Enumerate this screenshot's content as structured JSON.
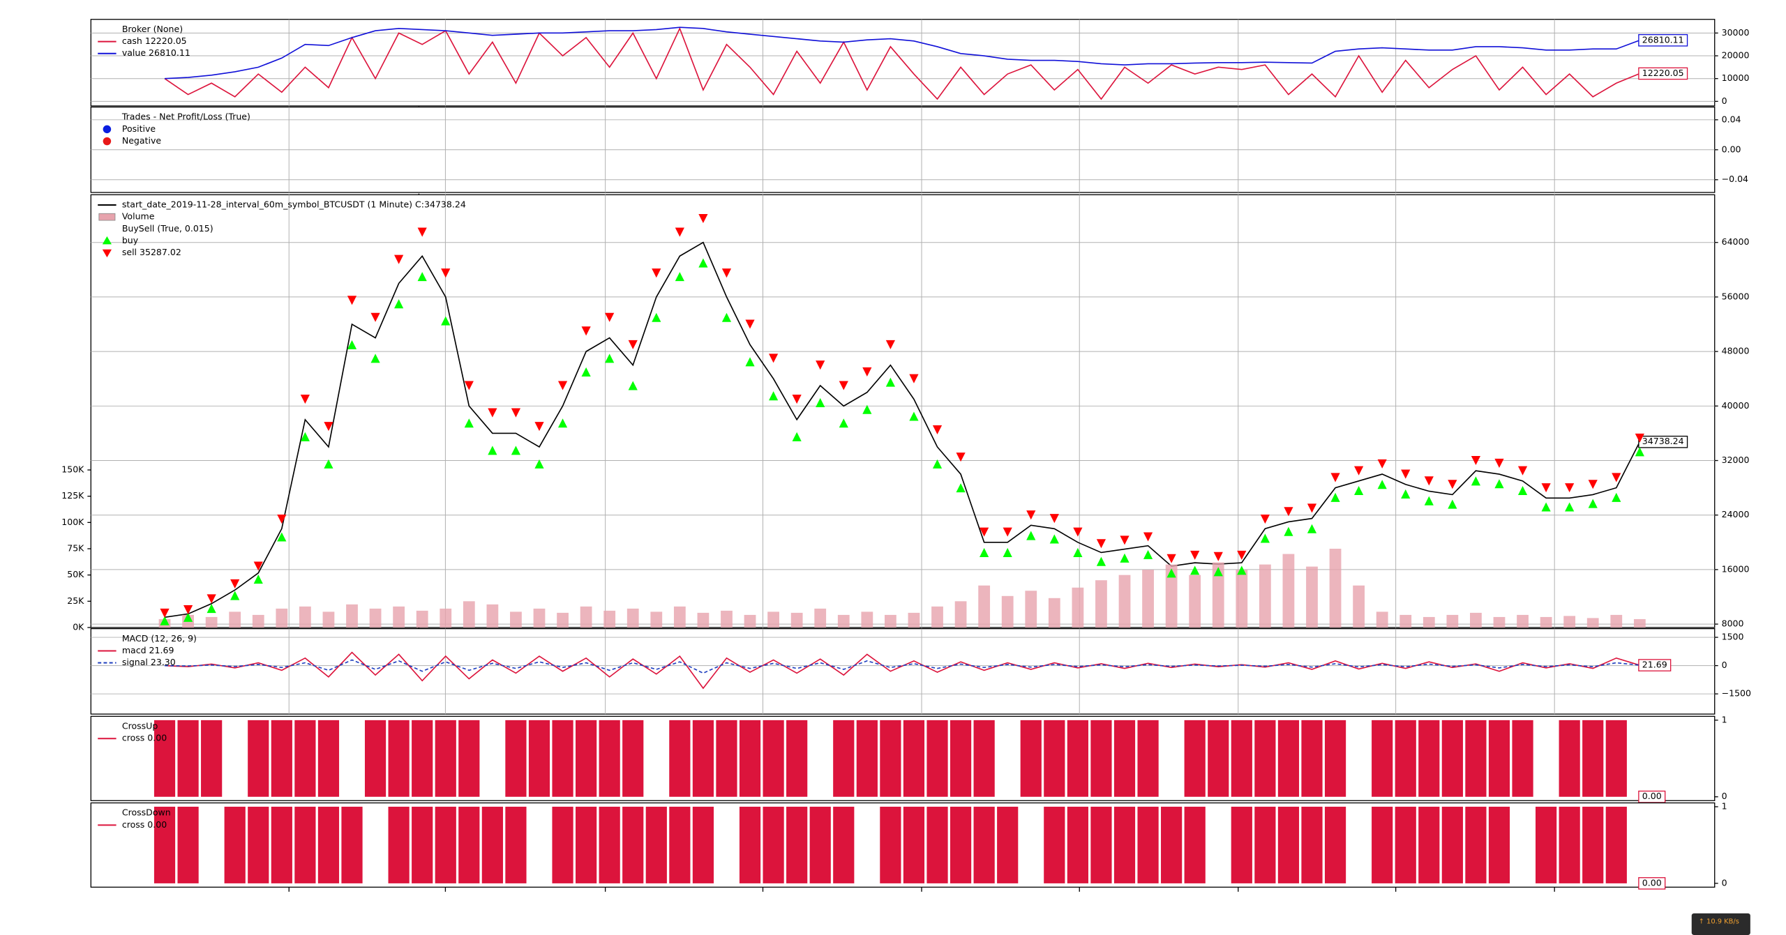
{
  "chart_data": [
    {
      "type": "line",
      "legend_title": "Broker (None)",
      "grid": true,
      "xlim": [
        -3.15,
        66.2
      ],
      "xticks": [
        5.31,
        11.99,
        18.82,
        25.55,
        32.33,
        39.07,
        45.85,
        52.58,
        59.36
      ],
      "ylim": [
        -2000,
        36000
      ],
      "yticks": [
        0,
        10000,
        20000,
        30000
      ],
      "series": [
        {
          "name": "cash 12220.05",
          "color": "#dc143c",
          "style": "line",
          "end_label": "12220.05",
          "values": [
            10000,
            3000,
            8000,
            2000,
            12000,
            4000,
            15000,
            6000,
            28000,
            10000,
            30000,
            25000,
            31000,
            12000,
            26000,
            8000,
            30000,
            20000,
            28000,
            15000,
            30000,
            10000,
            32000,
            5000,
            25000,
            15000,
            3000,
            22000,
            8000,
            26000,
            5000,
            24000,
            12000,
            1000,
            15000,
            3000,
            12000,
            16000,
            5000,
            14000,
            1000,
            15000,
            8000,
            16000,
            12000,
            15000,
            14000,
            16000,
            3000,
            12000,
            2000,
            20000,
            4000,
            18000,
            6000,
            14000,
            20000,
            5000,
            15000,
            3000,
            12000,
            2000,
            8000,
            12220.05
          ]
        },
        {
          "name": "value 26810.11",
          "color": "#1010d8",
          "style": "line",
          "end_label": "26810.11",
          "values": [
            10000,
            10500,
            11500,
            13000,
            15000,
            19000,
            25000,
            24500,
            28000,
            31000,
            32000,
            31500,
            31000,
            30000,
            29000,
            29500,
            30000,
            30000,
            30500,
            31000,
            31000,
            31500,
            32500,
            32000,
            30500,
            29500,
            28500,
            27500,
            26500,
            26000,
            27000,
            27500,
            26500,
            24000,
            21000,
            20000,
            18500,
            18000,
            18000,
            17500,
            16500,
            16000,
            16500,
            16500,
            16800,
            17000,
            17000,
            17200,
            17000,
            16800,
            22000,
            23000,
            23500,
            23000,
            22500,
            22500,
            24000,
            24000,
            23500,
            22500,
            22500,
            23000,
            23000,
            26810.11
          ]
        }
      ]
    },
    {
      "type": "scatter",
      "legend_title": "Trades - Net Profit/Loss (True)",
      "grid": true,
      "xlim": [
        -3.15,
        66.2
      ],
      "xticks": [
        5.31,
        11.99,
        18.82,
        25.55,
        32.33,
        39.07,
        45.85,
        52.58,
        59.36
      ],
      "ylim": [
        -0.057,
        0.057
      ],
      "yticks": [
        {
          "value": -0.04,
          "label": "−0.04"
        },
        {
          "value": 0,
          "label": "0.00"
        },
        {
          "value": 0.04,
          "label": "0.04"
        }
      ],
      "series": [
        {
          "name": "Positive",
          "color": "#0a1ee0",
          "style": "circle",
          "values": []
        },
        {
          "name": "Negative",
          "color": "#e81818",
          "style": "circle",
          "values": []
        }
      ]
    },
    {
      "type": "line",
      "grid": true,
      "group_title": "BuySell (True, 0.015)",
      "group_start": 2,
      "xlim": [
        -3.15,
        66.2
      ],
      "xticks": [
        5.31,
        11.99,
        18.82,
        25.55,
        32.33,
        39.07,
        45.85,
        52.58,
        59.36
      ],
      "ylim": [
        7500,
        71000
      ],
      "yticks": [
        8000,
        16000,
        24000,
        32000,
        40000,
        48000,
        56000,
        64000
      ],
      "y2lim": [
        0,
        412000
      ],
      "y2ticks": [
        {
          "value": 0,
          "label": "0K"
        },
        {
          "value": 25000,
          "label": "25K"
        },
        {
          "value": 50000,
          "label": "50K"
        },
        {
          "value": 75000,
          "label": "75K"
        },
        {
          "value": 100000,
          "label": "100K"
        },
        {
          "value": 125000,
          "label": "125K"
        },
        {
          "value": 150000,
          "label": "150K"
        }
      ],
      "series": [
        {
          "name": "start_date_2019-11-28_interval_60m_symbol_BTCUSDT (1 Minute) C:34738.24",
          "color": "#000000",
          "style": "line",
          "end_label": "34738.24",
          "values": [
            9000,
            9500,
            11000,
            13000,
            15500,
            22000,
            38000,
            34000,
            52000,
            50000,
            58000,
            62000,
            56000,
            40000,
            36000,
            36000,
            34000,
            40000,
            48000,
            50000,
            46000,
            56000,
            62000,
            64000,
            56000,
            49000,
            44000,
            38000,
            43000,
            40000,
            42000,
            46000,
            41000,
            34000,
            30000,
            20000,
            20000,
            22500,
            22000,
            20000,
            18500,
            19000,
            19500,
            16500,
            17000,
            16800,
            17000,
            22000,
            23000,
            23500,
            28000,
            29000,
            30000,
            28500,
            27500,
            27000,
            30500,
            30000,
            29000,
            26500,
            26500,
            27000,
            28000,
            34738.24
          ]
        },
        {
          "name": "Volume",
          "color": "#e7a3ad",
          "style": "bar",
          "axis": "y2",
          "values": [
            8000,
            12000,
            10000,
            15000,
            12000,
            18000,
            20000,
            15000,
            22000,
            18000,
            20000,
            16000,
            18000,
            25000,
            22000,
            15000,
            18000,
            14000,
            20000,
            16000,
            18000,
            15000,
            20000,
            14000,
            16000,
            12000,
            15000,
            14000,
            18000,
            12000,
            15000,
            12000,
            14000,
            20000,
            25000,
            40000,
            30000,
            35000,
            28000,
            38000,
            45000,
            50000,
            55000,
            60000,
            50000,
            62000,
            55000,
            60000,
            70000,
            58000,
            75000,
            40000,
            15000,
            12000,
            10000,
            12000,
            14000,
            10000,
            12000,
            10000,
            11000,
            9000,
            12000,
            8000
          ]
        },
        {
          "name": "buy",
          "color": "#00ff00",
          "style": "triangle-up",
          "values": [
            8500,
            9000,
            10300,
            12200,
            14600,
            20800,
            35500,
            31500,
            49000,
            47000,
            55000,
            59000,
            52500,
            37500,
            33500,
            33500,
            31500,
            37500,
            45000,
            47000,
            43000,
            53000,
            59000,
            61000,
            53000,
            46500,
            41500,
            35500,
            40500,
            37500,
            39500,
            43500,
            38500,
            31500,
            28000,
            18500,
            18500,
            21000,
            20500,
            18500,
            17200,
            17700,
            18200,
            15500,
            15900,
            15700,
            15900,
            20600,
            21600,
            22000,
            26600,
            27600,
            28500,
            27100,
            26100,
            25600,
            29000,
            28600,
            27600,
            25200,
            25200,
            25700,
            26600,
            33300
          ]
        },
        {
          "name": "sell 35287.02",
          "color": "#ff0000",
          "style": "triangle-down",
          "values": [
            9600,
            10100,
            11700,
            13900,
            16500,
            23400,
            41000,
            37000,
            55500,
            53000,
            61500,
            65500,
            59500,
            43000,
            39000,
            39000,
            37000,
            43000,
            51000,
            53000,
            49000,
            59500,
            65500,
            67500,
            59500,
            52000,
            47000,
            41000,
            46000,
            43000,
            45000,
            49000,
            44000,
            36500,
            32500,
            21500,
            21500,
            24000,
            23500,
            21500,
            19800,
            20300,
            20800,
            17600,
            18100,
            17900,
            18100,
            23400,
            24500,
            25000,
            29500,
            30500,
            31500,
            30000,
            29000,
            28500,
            32000,
            31600,
            30500,
            28000,
            28000,
            28500,
            29500,
            35287.02
          ]
        }
      ]
    },
    {
      "type": "line",
      "legend_title": "MACD (12, 26, 9)",
      "grid": true,
      "xlim": [
        -3.15,
        66.2
      ],
      "xticks": [
        5.31,
        11.99,
        18.82,
        25.55,
        32.33,
        39.07,
        45.85,
        52.58,
        59.36
      ],
      "ylim": [
        -2570,
        1960
      ],
      "yticks": [
        {
          "value": -1500,
          "label": "−1500"
        },
        0,
        1500
      ],
      "series": [
        {
          "name": "macd 21.69",
          "color": "#dc143c",
          "style": "line",
          "end_label": "21.69",
          "values": [
            0,
            -60,
            80,
            -120,
            150,
            -250,
            400,
            -600,
            700,
            -500,
            600,
            -800,
            500,
            -700,
            300,
            -400,
            500,
            -300,
            400,
            -600,
            350,
            -450,
            500,
            -1200,
            400,
            -350,
            300,
            -400,
            350,
            -500,
            600,
            -300,
            250,
            -350,
            200,
            -250,
            150,
            -200,
            150,
            -120,
            100,
            -150,
            120,
            -100,
            80,
            -60,
            50,
            -80,
            150,
            -200,
            250,
            -180,
            120,
            -150,
            200,
            -100,
            90,
            -300,
            150,
            -120,
            100,
            -150,
            400,
            21.69
          ]
        },
        {
          "name": "signal 23.30",
          "color": "#1f3fbf",
          "style": "line",
          "dash": true,
          "values": [
            0,
            -20,
            30,
            -50,
            60,
            -100,
            150,
            -250,
            300,
            -200,
            250,
            -300,
            200,
            -250,
            120,
            -150,
            200,
            -100,
            150,
            -250,
            150,
            -200,
            200,
            -400,
            150,
            -150,
            120,
            -150,
            150,
            -200,
            250,
            -100,
            100,
            -150,
            80,
            -100,
            60,
            -80,
            60,
            -50,
            40,
            -60,
            50,
            -40,
            30,
            -20,
            20,
            -30,
            60,
            -80,
            100,
            -70,
            50,
            -60,
            80,
            -40,
            40,
            -120,
            60,
            -50,
            40,
            -60,
            150,
            23.3
          ]
        }
      ]
    },
    {
      "type": "bar",
      "legend_title": "CrossUp",
      "grid": false,
      "xlim": [
        -3.15,
        66.2
      ],
      "xticks": [
        5.31,
        11.99,
        18.82,
        25.55,
        32.33,
        39.07,
        45.85,
        52.58,
        59.36
      ],
      "ylim": [
        -0.05,
        1.05
      ],
      "yticks": [
        0,
        1
      ],
      "series": [
        {
          "name": "cross 0.00",
          "color": "#dc143c",
          "style": "bar",
          "end_label": "0.00",
          "values": [
            1,
            1,
            1,
            0,
            1,
            1,
            1,
            1,
            0,
            1,
            1,
            1,
            1,
            1,
            0,
            1,
            1,
            1,
            1,
            1,
            1,
            0,
            1,
            1,
            1,
            1,
            1,
            1,
            0,
            1,
            1,
            1,
            1,
            1,
            1,
            1,
            0,
            1,
            1,
            1,
            1,
            1,
            1,
            0,
            1,
            1,
            1,
            1,
            1,
            1,
            1,
            0,
            1,
            1,
            1,
            1,
            1,
            1,
            1,
            0,
            1,
            1,
            1,
            0
          ]
        }
      ]
    },
    {
      "type": "bar",
      "legend_title": "CrossDown",
      "grid": false,
      "xlim": [
        -3.15,
        66.2
      ],
      "xticks": [
        5.31,
        11.99,
        18.82,
        25.55,
        32.33,
        39.07,
        45.85,
        52.58,
        59.36
      ],
      "ylim": [
        -0.05,
        1.05
      ],
      "yticks": [
        0,
        1
      ],
      "series": [
        {
          "name": "cross 0.00",
          "color": "#dc143c",
          "style": "bar",
          "end_label": "0.00",
          "values": [
            1,
            1,
            0,
            1,
            1,
            1,
            1,
            1,
            1,
            0,
            1,
            1,
            1,
            1,
            1,
            1,
            0,
            1,
            1,
            1,
            1,
            1,
            1,
            1,
            0,
            1,
            1,
            1,
            1,
            1,
            0,
            1,
            1,
            1,
            1,
            1,
            1,
            0,
            1,
            1,
            1,
            1,
            1,
            1,
            1,
            0,
            1,
            1,
            1,
            1,
            1,
            0,
            1,
            1,
            1,
            1,
            1,
            1,
            0,
            1,
            1,
            1,
            1,
            0
          ]
        }
      ]
    }
  ],
  "overlay": {
    "upload": "↑ 10.9 KB/s"
  }
}
